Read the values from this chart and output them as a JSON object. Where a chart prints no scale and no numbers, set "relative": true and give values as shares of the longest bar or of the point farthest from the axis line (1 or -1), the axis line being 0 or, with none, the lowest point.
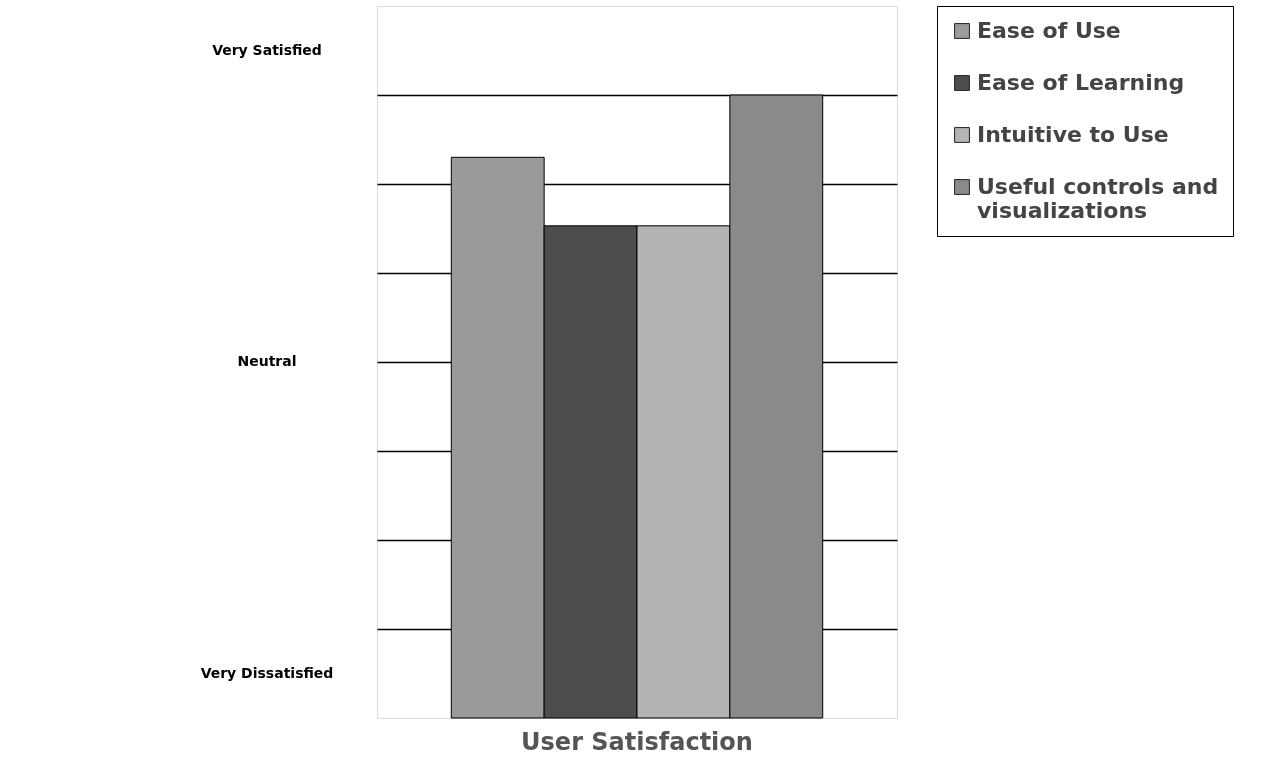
{
  "chart_data": {
    "type": "bar",
    "title": "User Satisfaction",
    "relative": true,
    "categories": [
      null
    ],
    "series": [
      {
        "name": "Ease of Use",
        "color": "#9a9a9a",
        "values": [
          0.9
        ]
      },
      {
        "name": "Ease of Learning",
        "color": "#4d4d4d",
        "values": [
          0.79
        ]
      },
      {
        "name": "Intuitive to Use",
        "color": "#b4b4b4",
        "values": [
          0.79
        ]
      },
      {
        "name": "Useful controls and visualizations",
        "color": "#8a8a8a",
        "values": [
          1.0
        ]
      }
    ],
    "annotations": [
      "Very Satisfied",
      "Neutral",
      "Very Dissatisfied"
    ],
    "grid": true,
    "legend": "right",
    "tick_labels": false
  }
}
